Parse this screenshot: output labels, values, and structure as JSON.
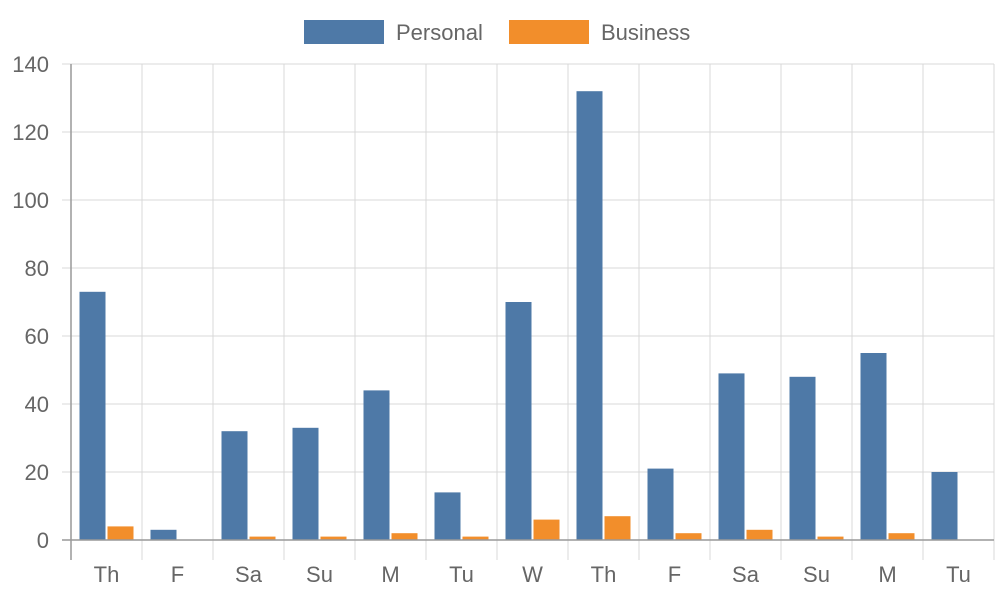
{
  "chart_data": {
    "type": "bar",
    "categories": [
      "Th",
      "F",
      "Sa",
      "Su",
      "M",
      "Tu",
      "W",
      "Th",
      "F",
      "Sa",
      "Su",
      "M",
      "Tu"
    ],
    "series": [
      {
        "name": "Personal",
        "color": "#4e79a7",
        "values": [
          73,
          3,
          32,
          33,
          44,
          14,
          70,
          132,
          21,
          49,
          48,
          55,
          20
        ]
      },
      {
        "name": "Business",
        "color": "#f28e2b",
        "values": [
          4,
          0,
          1,
          1,
          2,
          1,
          6,
          7,
          2,
          3,
          1,
          2,
          0
        ]
      }
    ],
    "ylim": [
      0,
      140
    ],
    "yticks": [
      0,
      20,
      40,
      60,
      80,
      100,
      120,
      140
    ],
    "grid": true,
    "legend_position": "top-center"
  }
}
